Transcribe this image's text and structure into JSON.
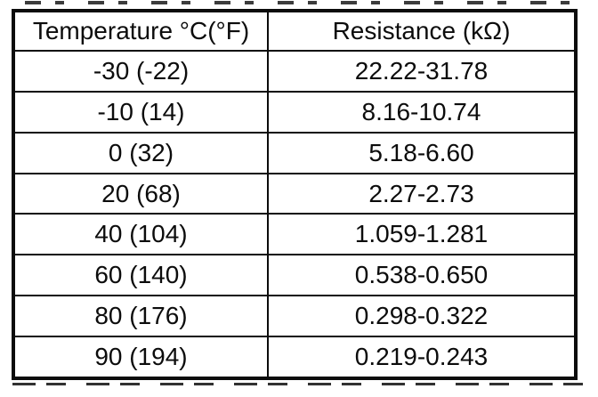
{
  "document": {
    "background_color": "#ffffff",
    "ink_color": "#0c0c0c"
  },
  "table": {
    "headers": [
      "Temperature °C(°F)",
      "Resistance (kΩ)"
    ],
    "rows": [
      [
        "-30 (-22)",
        "22.22-31.78"
      ],
      [
        "-10 (14)",
        "8.16-10.74"
      ],
      [
        "0 (32)",
        "5.18-6.60"
      ],
      [
        "20 (68)",
        "2.27-2.73"
      ],
      [
        "40 (104)",
        "1.059-1.281"
      ],
      [
        "60 (140)",
        "0.538-0.650"
      ],
      [
        "80 (176)",
        "0.298-0.322"
      ],
      [
        "90 (194)",
        "0.219-0.243"
      ]
    ]
  },
  "chart_data": {
    "type": "table",
    "title": "",
    "columns": [
      "Temperature °C(°F)",
      "Resistance (kΩ)"
    ],
    "rows": [
      {
        "temperature_c": -30,
        "temperature_f": -22,
        "resistance_kohm_min": 22.22,
        "resistance_kohm_max": 31.78
      },
      {
        "temperature_c": -10,
        "temperature_f": 14,
        "resistance_kohm_min": 8.16,
        "resistance_kohm_max": 10.74
      },
      {
        "temperature_c": 0,
        "temperature_f": 32,
        "resistance_kohm_min": 5.18,
        "resistance_kohm_max": 6.6
      },
      {
        "temperature_c": 20,
        "temperature_f": 68,
        "resistance_kohm_min": 2.27,
        "resistance_kohm_max": 2.73
      },
      {
        "temperature_c": 40,
        "temperature_f": 104,
        "resistance_kohm_min": 1.059,
        "resistance_kohm_max": 1.281
      },
      {
        "temperature_c": 60,
        "temperature_f": 140,
        "resistance_kohm_min": 0.538,
        "resistance_kohm_max": 0.65
      },
      {
        "temperature_c": 80,
        "temperature_f": 176,
        "resistance_kohm_min": 0.298,
        "resistance_kohm_max": 0.322
      },
      {
        "temperature_c": 90,
        "temperature_f": 194,
        "resistance_kohm_min": 0.219,
        "resistance_kohm_max": 0.243
      }
    ]
  }
}
